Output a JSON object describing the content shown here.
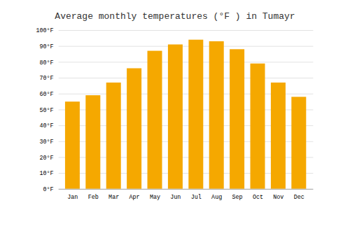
{
  "chart_data": {
    "type": "bar",
    "title": "Average monthly temperatures (°F ) in Tumayr",
    "categories": [
      "Jan",
      "Feb",
      "Mar",
      "Apr",
      "May",
      "Jun",
      "Jul",
      "Aug",
      "Sep",
      "Oct",
      "Nov",
      "Dec"
    ],
    "values": [
      55,
      59,
      67,
      76,
      87,
      91,
      94,
      93,
      88,
      79,
      67,
      58
    ],
    "color": "#F5A800",
    "ylim": [
      0,
      100
    ],
    "yticks": [
      {
        "value": 0,
        "label": "0°F"
      },
      {
        "value": 10,
        "label": "10°F"
      },
      {
        "value": 20,
        "label": "20°F"
      },
      {
        "value": 30,
        "label": "30°F"
      },
      {
        "value": 40,
        "label": "40°F"
      },
      {
        "value": 50,
        "label": "50°F"
      },
      {
        "value": 60,
        "label": "60°F"
      },
      {
        "value": 70,
        "label": "70°F"
      },
      {
        "value": 80,
        "label": "80°F"
      },
      {
        "value": 90,
        "label": "90°F"
      },
      {
        "value": 100,
        "label": "100°F"
      }
    ],
    "grid": true
  }
}
